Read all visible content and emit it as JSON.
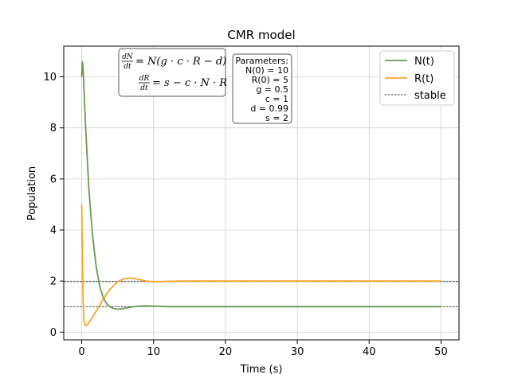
{
  "chart_data": {
    "type": "line",
    "title": "CMR model",
    "xlabel": "Time (s)",
    "ylabel": "Population",
    "xlim": [
      -2.5,
      52.5
    ],
    "ylim": [
      -0.3,
      11.2
    ],
    "xticks": [
      0,
      10,
      20,
      30,
      40,
      50
    ],
    "yticks": [
      0,
      2,
      4,
      6,
      8,
      10
    ],
    "grid": true,
    "legend_position": "top-right",
    "legend": [
      "N(t)",
      "R(t)",
      "stable"
    ],
    "series": [
      {
        "name": "N(t)",
        "color": "#6a9a4f",
        "x": [
          0,
          0.1,
          0.2,
          0.3,
          0.5,
          0.75,
          1,
          1.5,
          2,
          2.5,
          3,
          3.5,
          4,
          4.5,
          5,
          5.5,
          6,
          7,
          8,
          9,
          10,
          11,
          12,
          14,
          16,
          20,
          30,
          40,
          50
        ],
        "y": [
          10,
          10.6,
          10.3,
          9.6,
          8.3,
          6.9,
          5.6,
          3.8,
          2.6,
          1.8,
          1.35,
          1.1,
          0.98,
          0.92,
          0.9,
          0.91,
          0.94,
          0.99,
          1.02,
          1.03,
          1.02,
          1.01,
          1.0,
          1.0,
          1.0,
          1.0,
          1.0,
          1.0,
          1.0
        ]
      },
      {
        "name": "R(t)",
        "color": "#f5a623",
        "x": [
          0,
          0.1,
          0.2,
          0.3,
          0.45,
          0.6,
          0.8,
          1,
          1.5,
          2,
          2.5,
          3,
          4,
          5,
          6,
          7,
          8,
          9,
          10,
          11,
          12,
          14,
          16,
          20,
          30,
          40,
          50
        ],
        "y": [
          5,
          2.6,
          1.2,
          0.5,
          0.27,
          0.25,
          0.3,
          0.38,
          0.58,
          0.82,
          1.05,
          1.3,
          1.7,
          1.98,
          2.1,
          2.12,
          2.06,
          2.0,
          1.97,
          1.98,
          1.99,
          2.0,
          2.0,
          2.0,
          2.0,
          2.0,
          2.0
        ]
      }
    ],
    "stable_lines": [
      {
        "name": "stable",
        "y": 1.98,
        "color": "#000000"
      },
      {
        "name": "",
        "y": 1.0,
        "color": "#000000"
      }
    ]
  },
  "equations": {
    "eq1_frac_num": "dN",
    "eq1_frac_den": "dt",
    "eq1_rhs": "= N(g · c · R − d)",
    "eq2_frac_num": "dR",
    "eq2_frac_den": "dt",
    "eq2_rhs": "= s − c · N · R"
  },
  "parameters": {
    "heading": "Parameters:",
    "lines": [
      "N(0) = 10",
      "R(0) = 5",
      "g = 0.5",
      "c = 1",
      "d = 0.99",
      "s = 2"
    ]
  }
}
